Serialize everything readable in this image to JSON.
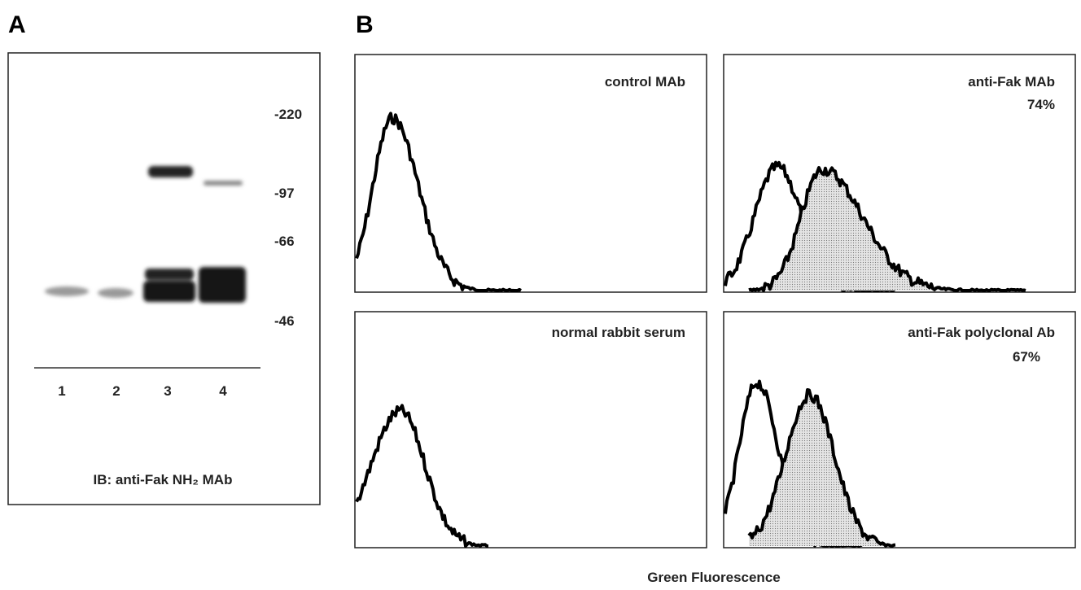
{
  "panel_a": {
    "label": "A",
    "markers": [
      "-220",
      "-97",
      "-66",
      "-46"
    ],
    "lanes": [
      "1",
      "2",
      "3",
      "4"
    ],
    "caption": "IB: anti-Fak NH₂ MAb"
  },
  "panel_b": {
    "label": "B",
    "plots": [
      {
        "title": "control MAb"
      },
      {
        "title": "anti-Fak MAb",
        "percent": "74%"
      },
      {
        "title": "normal rabbit serum"
      },
      {
        "title": "anti-Fak polyclonal Ab",
        "percent": "67%"
      }
    ],
    "x_axis_label": "Green Fluorescence"
  }
}
